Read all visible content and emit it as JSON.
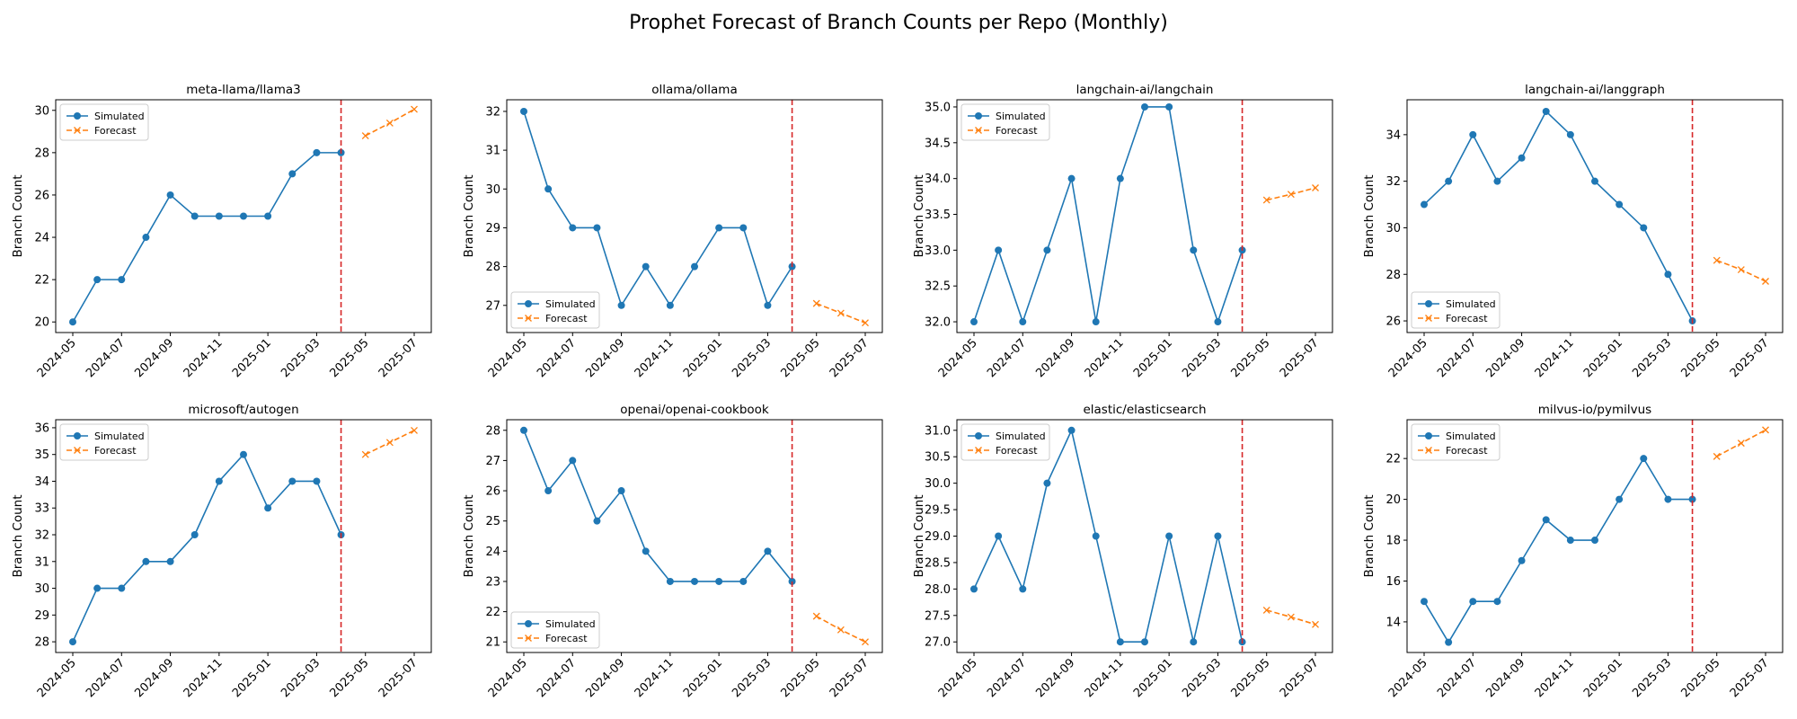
{
  "figure": {
    "title": "Prophet Forecast of Branch Counts per Repo (Monthly)"
  },
  "colors": {
    "simulated": "#1f77b4",
    "forecast": "#ff7f0e",
    "cutoff": "#d62728"
  },
  "chart_data": [
    {
      "type": "line",
      "title": "meta-llama/llama3",
      "ylabel": "Branch Count",
      "x_ticks": [
        "2024-05",
        "2024-07",
        "2024-09",
        "2024-11",
        "2025-01",
        "2025-03",
        "2025-05",
        "2025-07"
      ],
      "ylim": [
        19.5,
        30.5
      ],
      "y_ticks": [
        20,
        22,
        24,
        26,
        28,
        30
      ],
      "y_tick_labels": [
        "20",
        "22",
        "24",
        "26",
        "28",
        "30"
      ],
      "cutoff": "2025-04",
      "legend": {
        "position": "upper left",
        "entries": [
          "Simulated",
          "Forecast"
        ]
      },
      "series": [
        {
          "name": "Simulated",
          "style": "solid-circle",
          "x": [
            "2024-05",
            "2024-06",
            "2024-07",
            "2024-08",
            "2024-09",
            "2024-10",
            "2024-11",
            "2024-12",
            "2025-01",
            "2025-02",
            "2025-03",
            "2025-04"
          ],
          "y": [
            20,
            22,
            22,
            24,
            26,
            25,
            25,
            25,
            25,
            27,
            28,
            28
          ]
        },
        {
          "name": "Forecast",
          "style": "dashed-x",
          "x": [
            "2025-05",
            "2025-06",
            "2025-07"
          ],
          "y": [
            28.8,
            29.4,
            30.05
          ]
        }
      ]
    },
    {
      "type": "line",
      "title": "ollama/ollama",
      "ylabel": "Branch Count",
      "x_ticks": [
        "2024-05",
        "2024-07",
        "2024-09",
        "2024-11",
        "2025-01",
        "2025-03",
        "2025-05",
        "2025-07"
      ],
      "ylim": [
        26.3,
        32.3
      ],
      "y_ticks": [
        27,
        28,
        29,
        30,
        31,
        32
      ],
      "y_tick_labels": [
        "27",
        "28",
        "29",
        "30",
        "31",
        "32"
      ],
      "cutoff": "2025-04",
      "legend": {
        "position": "lower left",
        "entries": [
          "Simulated",
          "Forecast"
        ]
      },
      "series": [
        {
          "name": "Simulated",
          "style": "solid-circle",
          "x": [
            "2024-05",
            "2024-06",
            "2024-07",
            "2024-08",
            "2024-09",
            "2024-10",
            "2024-11",
            "2024-12",
            "2025-01",
            "2025-02",
            "2025-03",
            "2025-04"
          ],
          "y": [
            32,
            30,
            29,
            29,
            27,
            28,
            27,
            28,
            29,
            29,
            27,
            28
          ]
        },
        {
          "name": "Forecast",
          "style": "dashed-x",
          "x": [
            "2025-05",
            "2025-06",
            "2025-07"
          ],
          "y": [
            27.05,
            26.8,
            26.55
          ]
        }
      ]
    },
    {
      "type": "line",
      "title": "langchain-ai/langchain",
      "ylabel": "Branch Count",
      "x_ticks": [
        "2024-05",
        "2024-07",
        "2024-09",
        "2024-11",
        "2025-01",
        "2025-03",
        "2025-05",
        "2025-07"
      ],
      "ylim": [
        31.85,
        35.1
      ],
      "y_ticks": [
        32.0,
        32.5,
        33.0,
        33.5,
        34.0,
        34.5,
        35.0
      ],
      "y_tick_labels": [
        "32.0",
        "32.5",
        "33.0",
        "33.5",
        "34.0",
        "34.5",
        "35.0"
      ],
      "cutoff": "2025-04",
      "legend": {
        "position": "upper left",
        "entries": [
          "Simulated",
          "Forecast"
        ]
      },
      "series": [
        {
          "name": "Simulated",
          "style": "solid-circle",
          "x": [
            "2024-05",
            "2024-06",
            "2024-07",
            "2024-08",
            "2024-09",
            "2024-10",
            "2024-11",
            "2024-12",
            "2025-01",
            "2025-02",
            "2025-03",
            "2025-04"
          ],
          "y": [
            32,
            33,
            32,
            33,
            34,
            32,
            34,
            35,
            35,
            33,
            32,
            33
          ]
        },
        {
          "name": "Forecast",
          "style": "dashed-x",
          "x": [
            "2025-05",
            "2025-06",
            "2025-07"
          ],
          "y": [
            33.7,
            33.78,
            33.87
          ]
        }
      ]
    },
    {
      "type": "line",
      "title": "langchain-ai/langgraph",
      "ylabel": "Branch Count",
      "x_ticks": [
        "2024-05",
        "2024-07",
        "2024-09",
        "2024-11",
        "2025-01",
        "2025-03",
        "2025-05",
        "2025-07"
      ],
      "ylim": [
        25.5,
        35.5
      ],
      "y_ticks": [
        26,
        28,
        30,
        32,
        34
      ],
      "y_tick_labels": [
        "26",
        "28",
        "30",
        "32",
        "34"
      ],
      "cutoff": "2025-04",
      "legend": {
        "position": "lower left",
        "entries": [
          "Simulated",
          "Forecast"
        ]
      },
      "series": [
        {
          "name": "Simulated",
          "style": "solid-circle",
          "x": [
            "2024-05",
            "2024-06",
            "2024-07",
            "2024-08",
            "2024-09",
            "2024-10",
            "2024-11",
            "2024-12",
            "2025-01",
            "2025-02",
            "2025-03",
            "2025-04"
          ],
          "y": [
            31,
            32,
            34,
            32,
            33,
            35,
            34,
            32,
            31,
            30,
            28,
            26
          ]
        },
        {
          "name": "Forecast",
          "style": "dashed-x",
          "x": [
            "2025-05",
            "2025-06",
            "2025-07"
          ],
          "y": [
            28.6,
            28.2,
            27.7
          ]
        }
      ]
    },
    {
      "type": "line",
      "title": "microsoft/autogen",
      "ylabel": "Branch Count",
      "x_ticks": [
        "2024-05",
        "2024-07",
        "2024-09",
        "2024-11",
        "2025-01",
        "2025-03",
        "2025-05",
        "2025-07"
      ],
      "ylim": [
        27.6,
        36.3
      ],
      "y_ticks": [
        28,
        29,
        30,
        31,
        32,
        33,
        34,
        35,
        36
      ],
      "y_tick_labels": [
        "28",
        "29",
        "30",
        "31",
        "32",
        "33",
        "34",
        "35",
        "36"
      ],
      "cutoff": "2025-04",
      "legend": {
        "position": "upper left",
        "entries": [
          "Simulated",
          "Forecast"
        ]
      },
      "series": [
        {
          "name": "Simulated",
          "style": "solid-circle",
          "x": [
            "2024-05",
            "2024-06",
            "2024-07",
            "2024-08",
            "2024-09",
            "2024-10",
            "2024-11",
            "2024-12",
            "2025-01",
            "2025-02",
            "2025-03",
            "2025-04"
          ],
          "y": [
            28,
            30,
            30,
            31,
            31,
            32,
            34,
            35,
            33,
            34,
            34,
            32
          ]
        },
        {
          "name": "Forecast",
          "style": "dashed-x",
          "x": [
            "2025-05",
            "2025-06",
            "2025-07"
          ],
          "y": [
            35.0,
            35.45,
            35.9
          ]
        }
      ]
    },
    {
      "type": "line",
      "title": "openai/openai-cookbook",
      "ylabel": "Branch Count",
      "x_ticks": [
        "2024-05",
        "2024-07",
        "2024-09",
        "2024-11",
        "2025-01",
        "2025-03",
        "2025-05",
        "2025-07"
      ],
      "ylim": [
        20.65,
        28.35
      ],
      "y_ticks": [
        21,
        22,
        23,
        24,
        25,
        26,
        27,
        28
      ],
      "y_tick_labels": [
        "21",
        "22",
        "23",
        "24",
        "25",
        "26",
        "27",
        "28"
      ],
      "cutoff": "2025-04",
      "legend": {
        "position": "lower left",
        "entries": [
          "Simulated",
          "Forecast"
        ]
      },
      "series": [
        {
          "name": "Simulated",
          "style": "solid-circle",
          "x": [
            "2024-05",
            "2024-06",
            "2024-07",
            "2024-08",
            "2024-09",
            "2024-10",
            "2024-11",
            "2024-12",
            "2025-01",
            "2025-02",
            "2025-03",
            "2025-04"
          ],
          "y": [
            28,
            26,
            27,
            25,
            26,
            24,
            23,
            23,
            23,
            23,
            24,
            23
          ]
        },
        {
          "name": "Forecast",
          "style": "dashed-x",
          "x": [
            "2025-05",
            "2025-06",
            "2025-07"
          ],
          "y": [
            21.85,
            21.4,
            21.0
          ]
        }
      ]
    },
    {
      "type": "line",
      "title": "elastic/elasticsearch",
      "ylabel": "Branch Count",
      "x_ticks": [
        "2024-05",
        "2024-07",
        "2024-09",
        "2024-11",
        "2025-01",
        "2025-03",
        "2025-05",
        "2025-07"
      ],
      "ylim": [
        26.8,
        31.2
      ],
      "y_ticks": [
        27.0,
        27.5,
        28.0,
        28.5,
        29.0,
        29.5,
        30.0,
        30.5,
        31.0
      ],
      "y_tick_labels": [
        "27.0",
        "27.5",
        "28.0",
        "28.5",
        "29.0",
        "29.5",
        "30.0",
        "30.5",
        "31.0"
      ],
      "cutoff": "2025-04",
      "legend": {
        "position": "upper left",
        "entries": [
          "Simulated",
          "Forecast"
        ]
      },
      "series": [
        {
          "name": "Simulated",
          "style": "solid-circle",
          "x": [
            "2024-05",
            "2024-06",
            "2024-07",
            "2024-08",
            "2024-09",
            "2024-10",
            "2024-11",
            "2024-12",
            "2025-01",
            "2025-02",
            "2025-03",
            "2025-04"
          ],
          "y": [
            28,
            29,
            28,
            30,
            31,
            29,
            27,
            27,
            29,
            27,
            29,
            27
          ]
        },
        {
          "name": "Forecast",
          "style": "dashed-x",
          "x": [
            "2025-05",
            "2025-06",
            "2025-07"
          ],
          "y": [
            27.6,
            27.47,
            27.33
          ]
        }
      ]
    },
    {
      "type": "line",
      "title": "milvus-io/pymilvus",
      "ylabel": "Branch Count",
      "x_ticks": [
        "2024-05",
        "2024-07",
        "2024-09",
        "2024-11",
        "2025-01",
        "2025-03",
        "2025-05",
        "2025-07"
      ],
      "ylim": [
        12.5,
        23.9
      ],
      "y_ticks": [
        14,
        16,
        18,
        20,
        22
      ],
      "y_tick_labels": [
        "14",
        "16",
        "18",
        "20",
        "22"
      ],
      "cutoff": "2025-04",
      "legend": {
        "position": "upper left",
        "entries": [
          "Simulated",
          "Forecast"
        ]
      },
      "series": [
        {
          "name": "Simulated",
          "style": "solid-circle",
          "x": [
            "2024-05",
            "2024-06",
            "2024-07",
            "2024-08",
            "2024-09",
            "2024-10",
            "2024-11",
            "2024-12",
            "2025-01",
            "2025-02",
            "2025-03",
            "2025-04"
          ],
          "y": [
            15,
            13,
            15,
            15,
            17,
            19,
            18,
            18,
            20,
            22,
            20,
            20
          ]
        },
        {
          "name": "Forecast",
          "style": "dashed-x",
          "x": [
            "2025-05",
            "2025-06",
            "2025-07"
          ],
          "y": [
            22.1,
            22.75,
            23.4
          ]
        }
      ]
    }
  ]
}
